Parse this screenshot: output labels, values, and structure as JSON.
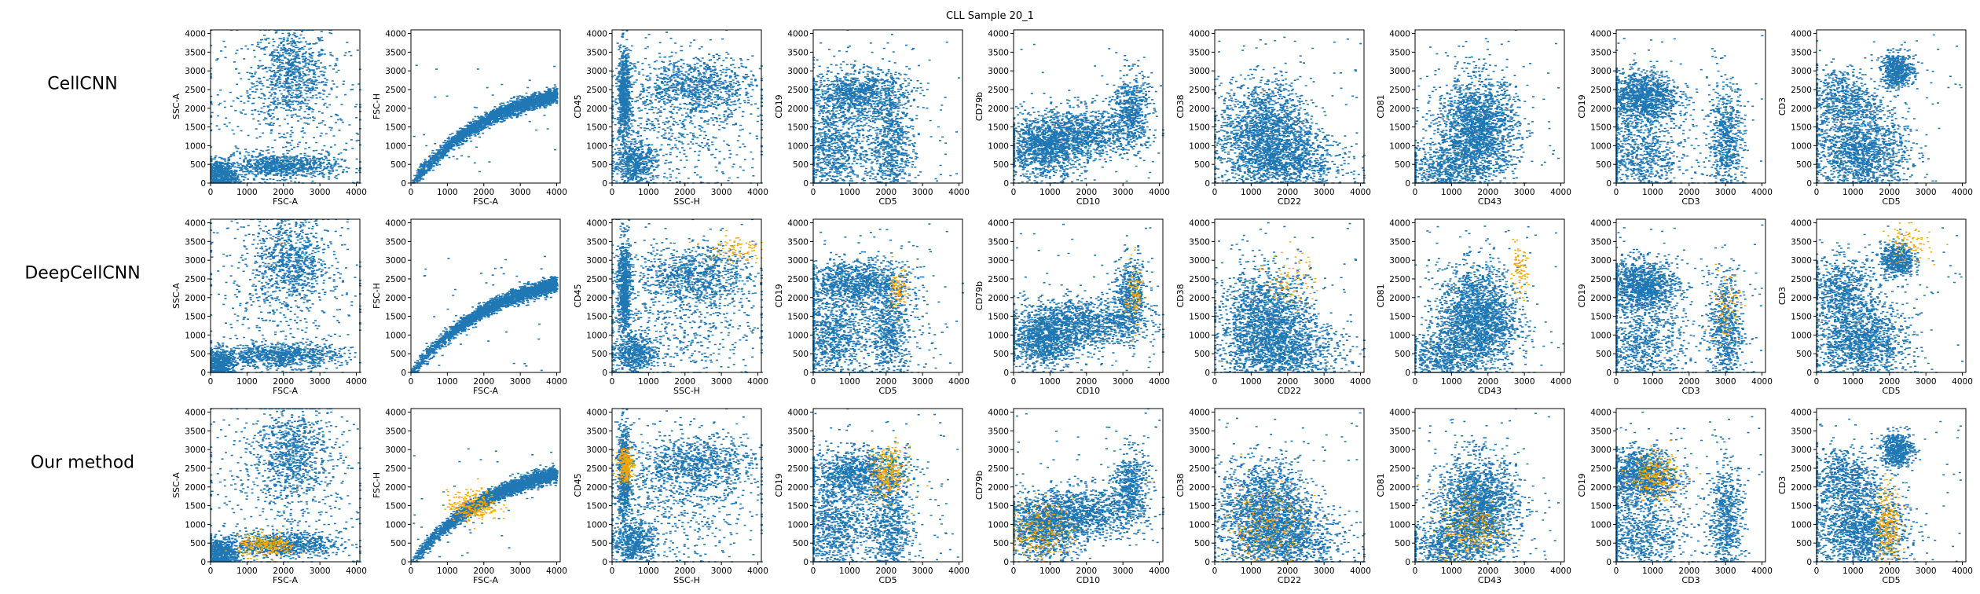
{
  "figure": {
    "title": "CLL Sample 20_1",
    "rows": [
      "CellCNN",
      "DeepCellCNN",
      "Our method"
    ],
    "colors": {
      "base": "#1f77b4",
      "highlight": "#f5a602"
    }
  },
  "chart_data": {
    "type": "scatter",
    "title": "CLL Sample 20_1",
    "grid": false,
    "xlim": [
      0,
      4096
    ],
    "ylim": [
      0,
      4096
    ],
    "ticks": [
      0,
      500,
      1000,
      1500,
      2000,
      2500,
      3000,
      3500,
      4000
    ],
    "x_ticks": [
      0,
      1000,
      2000,
      3000,
      4000
    ],
    "y_ticks": [
      0,
      500,
      1000,
      1500,
      2000,
      2500,
      3000,
      3500,
      4000
    ],
    "panels": [
      {
        "xlabel": "FSC-A",
        "ylabel": "SSC-A",
        "clusters": [
          {
            "cx": 2200,
            "cy": 2900,
            "sx": 520,
            "sy": 640,
            "w": 0.3
          },
          {
            "cx": 1900,
            "cy": 450,
            "sx": 800,
            "sy": 160,
            "w": 0.32
          },
          {
            "cx": 250,
            "cy": 180,
            "sx": 230,
            "sy": 220,
            "w": 0.25
          },
          {
            "cx": 2000,
            "cy": 2000,
            "sx": 1200,
            "sy": 1200,
            "w": 0.13
          }
        ],
        "highlight": [
          null,
          null,
          {
            "cx": 1550,
            "cy": 420,
            "sx": 400,
            "sy": 140
          }
        ]
      },
      {
        "xlabel": "FSC-A",
        "ylabel": "FSC-H",
        "curve": "saturating",
        "ymax": 2400,
        "highlight": [
          null,
          null,
          {
            "cx": 1700,
            "cy": 1500,
            "sx": 350,
            "sy": 200
          }
        ]
      },
      {
        "xlabel": "SSC-H",
        "ylabel": "CD45",
        "clusters": [
          {
            "cx": 320,
            "cy": 2300,
            "sx": 90,
            "sy": 650,
            "w": 0.28
          },
          {
            "cx": 2300,
            "cy": 2600,
            "sx": 800,
            "sy": 380,
            "w": 0.3
          },
          {
            "cx": 600,
            "cy": 500,
            "sx": 300,
            "sy": 300,
            "w": 0.2
          },
          {
            "cx": 1800,
            "cy": 1500,
            "sx": 1100,
            "sy": 900,
            "w": 0.22
          }
        ],
        "highlight": [
          null,
          {
            "cx": 3300,
            "cy": 3300,
            "sx": 400,
            "sy": 200
          },
          {
            "cx": 350,
            "cy": 2600,
            "sx": 100,
            "sy": 250
          }
        ]
      },
      {
        "xlabel": "CD5",
        "ylabel": "CD19",
        "clusters": [
          {
            "cx": 1200,
            "cy": 2400,
            "sx": 700,
            "sy": 300,
            "w": 0.35
          },
          {
            "cx": 500,
            "cy": 900,
            "sx": 450,
            "sy": 650,
            "w": 0.25
          },
          {
            "cx": 2100,
            "cy": 1000,
            "sx": 250,
            "sy": 700,
            "w": 0.2
          },
          {
            "cx": 1300,
            "cy": 1300,
            "sx": 900,
            "sy": 900,
            "w": 0.2
          }
        ],
        "highlight": [
          null,
          {
            "cx": 2350,
            "cy": 2200,
            "sx": 120,
            "sy": 300
          },
          {
            "cx": 2050,
            "cy": 2350,
            "sx": 250,
            "sy": 350
          }
        ]
      },
      {
        "xlabel": "CD10",
        "ylabel": "CD79b",
        "clusters": [
          {
            "cx": 800,
            "cy": 900,
            "sx": 500,
            "sy": 400,
            "w": 0.4
          },
          {
            "cx": 1900,
            "cy": 1300,
            "sx": 800,
            "sy": 350,
            "w": 0.4
          },
          {
            "cx": 3200,
            "cy": 2000,
            "sx": 250,
            "sy": 500,
            "w": 0.2
          }
        ],
        "highlight": [
          null,
          {
            "cx": 3300,
            "cy": 2100,
            "sx": 120,
            "sy": 450
          },
          {
            "cx": 700,
            "cy": 800,
            "sx": 450,
            "sy": 400
          }
        ]
      },
      {
        "xlabel": "CD22",
        "ylabel": "CD38",
        "clusters": [
          {
            "cx": 1400,
            "cy": 1300,
            "sx": 650,
            "sy": 700,
            "w": 0.7
          },
          {
            "cx": 2000,
            "cy": 500,
            "sx": 800,
            "sy": 400,
            "w": 0.3
          }
        ],
        "highlight": [
          null,
          {
            "cx": 2100,
            "cy": 2500,
            "sx": 350,
            "sy": 400
          },
          {
            "cx": 1400,
            "cy": 900,
            "sx": 550,
            "sy": 650
          }
        ]
      },
      {
        "xlabel": "CD43",
        "ylabel": "CD81",
        "clusters": [
          {
            "cx": 1700,
            "cy": 1400,
            "sx": 550,
            "sy": 700,
            "w": 0.8
          },
          {
            "cx": 800,
            "cy": 400,
            "sx": 500,
            "sy": 350,
            "w": 0.2
          }
        ],
        "highlight": [
          null,
          {
            "cx": 2850,
            "cy": 2700,
            "sx": 120,
            "sy": 300
          },
          {
            "cx": 1600,
            "cy": 900,
            "sx": 450,
            "sy": 550
          }
        ]
      },
      {
        "xlabel": "CD3",
        "ylabel": "CD19",
        "clusters": [
          {
            "cx": 700,
            "cy": 2300,
            "sx": 500,
            "sy": 350,
            "w": 0.45
          },
          {
            "cx": 700,
            "cy": 700,
            "sx": 600,
            "sy": 600,
            "w": 0.3
          },
          {
            "cx": 3000,
            "cy": 1100,
            "sx": 250,
            "sy": 800,
            "w": 0.25
          }
        ],
        "highlight": [
          null,
          {
            "cx": 3000,
            "cy": 1800,
            "sx": 200,
            "sy": 500
          },
          {
            "cx": 1050,
            "cy": 2250,
            "sx": 350,
            "sy": 300
          }
        ]
      },
      {
        "xlabel": "CD5",
        "ylabel": "CD3",
        "clusters": [
          {
            "cx": 2200,
            "cy": 3000,
            "sx": 230,
            "sy": 230,
            "w": 0.2
          },
          {
            "cx": 1200,
            "cy": 800,
            "sx": 650,
            "sy": 550,
            "w": 0.55
          },
          {
            "cx": 700,
            "cy": 2200,
            "sx": 500,
            "sy": 450,
            "w": 0.25
          }
        ],
        "highlight": [
          null,
          {
            "cx": 2500,
            "cy": 3400,
            "sx": 300,
            "sy": 250
          },
          {
            "cx": 1950,
            "cy": 1000,
            "sx": 180,
            "sy": 550
          }
        ]
      }
    ]
  }
}
